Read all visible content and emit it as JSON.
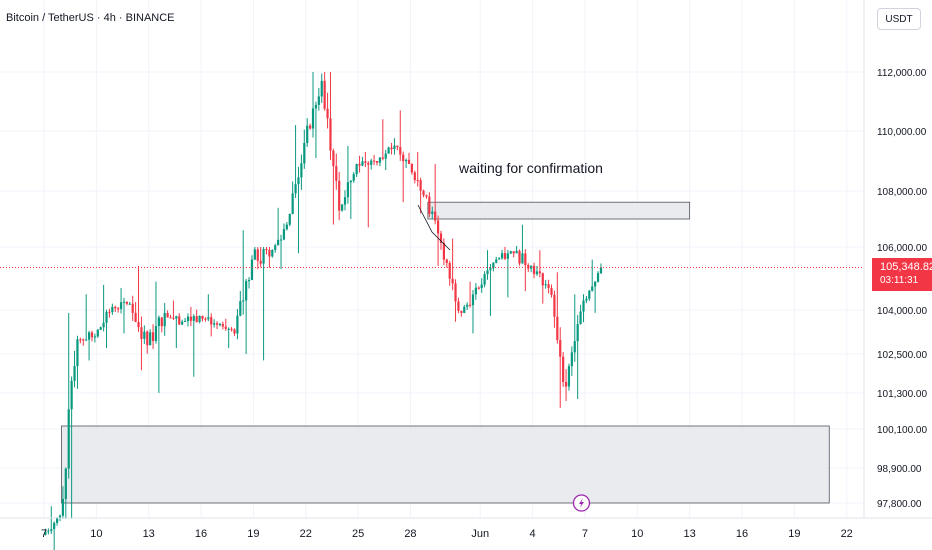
{
  "header": {
    "title": "Bitcoin / TetherUS · 4h · BINANCE"
  },
  "currency_button": "USDT",
  "current_price": {
    "price": "105,348.82",
    "countdown": "03:11:31",
    "color": "#f23645"
  },
  "colors": {
    "up": "#089981",
    "down": "#f23645",
    "grid": "#f0f3fa",
    "zone_fill": "#e6e7ec",
    "zone_stroke": "#50535e",
    "alert_icon": "#9c27b0"
  },
  "icons": {
    "alert": "lightning-icon"
  },
  "chart_data": {
    "type": "candlestick",
    "annotations": [
      {
        "text": "waiting for confirmation"
      }
    ],
    "zones": [
      {
        "name": "supply-zone",
        "date_from": "May 29",
        "date_to": "Jun 13",
        "price_low": 107000,
        "price_high": 107600
      },
      {
        "name": "demand-zone",
        "date_from": "May 8",
        "date_to": "Jun 21",
        "price_low": 97800,
        "price_high": 100200
      }
    ],
    "y_axis": {
      "ticks": [
        "112,000.00",
        "110,000.00",
        "108,000.00",
        "106,000.00",
        "104,000.00",
        "102,500.00",
        "101,300.00",
        "100,100.00",
        "98,900.00",
        "97,800.00"
      ]
    },
    "x_axis": {
      "ticks": [
        "7",
        "10",
        "13",
        "16",
        "19",
        "22",
        "25",
        "28",
        "Jun",
        "4",
        "7",
        "10",
        "13",
        "16",
        "19",
        "22"
      ]
    },
    "ohlc_daily": [
      {
        "date": "May 7",
        "o": 96800,
        "h": 97700,
        "l": 96100,
        "c": 97400
      },
      {
        "date": "May 8",
        "o": 97400,
        "h": 103900,
        "l": 97300,
        "c": 103000
      },
      {
        "date": "May 9",
        "o": 103000,
        "h": 104500,
        "l": 102300,
        "c": 103100
      },
      {
        "date": "May 10",
        "o": 103100,
        "h": 104800,
        "l": 102700,
        "c": 104100
      },
      {
        "date": "May 11",
        "o": 104100,
        "h": 104700,
        "l": 103200,
        "c": 104200
      },
      {
        "date": "May 12",
        "o": 104200,
        "h": 105400,
        "l": 102000,
        "c": 102800
      },
      {
        "date": "May 13",
        "o": 102800,
        "h": 104900,
        "l": 101300,
        "c": 103900
      },
      {
        "date": "May 14",
        "o": 103900,
        "h": 104300,
        "l": 102700,
        "c": 103600
      },
      {
        "date": "May 15",
        "o": 103600,
        "h": 104100,
        "l": 101800,
        "c": 103800
      },
      {
        "date": "May 16",
        "o": 103800,
        "h": 104500,
        "l": 103100,
        "c": 103500
      },
      {
        "date": "May 17",
        "o": 103500,
        "h": 103700,
        "l": 102700,
        "c": 103200
      },
      {
        "date": "May 18",
        "o": 103200,
        "h": 106600,
        "l": 102500,
        "c": 105600
      },
      {
        "date": "May 19",
        "o": 105600,
        "h": 106000,
        "l": 102300,
        "c": 105700
      },
      {
        "date": "May 20",
        "o": 105700,
        "h": 107400,
        "l": 105300,
        "c": 106800
      },
      {
        "date": "May 21",
        "o": 106800,
        "h": 110200,
        "l": 105800,
        "c": 109600
      },
      {
        "date": "May 22",
        "o": 109600,
        "h": 112000,
        "l": 109100,
        "c": 111700
      },
      {
        "date": "May 23",
        "o": 111700,
        "h": 112000,
        "l": 106800,
        "c": 107300
      },
      {
        "date": "May 24",
        "o": 107300,
        "h": 109500,
        "l": 107000,
        "c": 108900
      },
      {
        "date": "May 25",
        "o": 108900,
        "h": 109300,
        "l": 106700,
        "c": 109000
      },
      {
        "date": "May 26",
        "o": 109000,
        "h": 110400,
        "l": 108700,
        "c": 109400
      },
      {
        "date": "May 27",
        "o": 109400,
        "h": 110700,
        "l": 107600,
        "c": 108900
      },
      {
        "date": "May 28",
        "o": 108900,
        "h": 109300,
        "l": 107200,
        "c": 107800
      },
      {
        "date": "May 29",
        "o": 107800,
        "h": 108900,
        "l": 105400,
        "c": 105600
      },
      {
        "date": "May 30",
        "o": 105600,
        "h": 106300,
        "l": 103600,
        "c": 103900
      },
      {
        "date": "May 31",
        "o": 103900,
        "h": 104900,
        "l": 103200,
        "c": 104700
      },
      {
        "date": "Jun 1",
        "o": 104700,
        "h": 105900,
        "l": 103800,
        "c": 105600
      },
      {
        "date": "Jun 2",
        "o": 105600,
        "h": 106000,
        "l": 104400,
        "c": 105800
      },
      {
        "date": "Jun 3",
        "o": 105800,
        "h": 106800,
        "l": 104600,
        "c": 105400
      },
      {
        "date": "Jun 4",
        "o": 105400,
        "h": 105900,
        "l": 104200,
        "c": 104700
      },
      {
        "date": "Jun 5",
        "o": 104700,
        "h": 105200,
        "l": 100800,
        "c": 101500
      },
      {
        "date": "Jun 6",
        "o": 101500,
        "h": 104500,
        "l": 101100,
        "c": 104300
      },
      {
        "date": "Jun 7",
        "o": 104300,
        "h": 105600,
        "l": 103900,
        "c": 105350
      }
    ]
  }
}
